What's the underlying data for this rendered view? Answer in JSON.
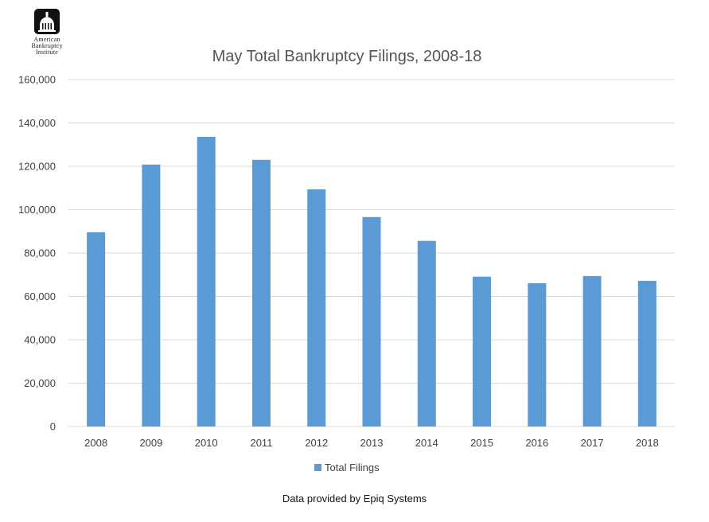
{
  "logo": {
    "lines": [
      "American",
      "Bankruptcy",
      "Institute"
    ],
    "icon": "capitol-dome-icon"
  },
  "footer": {
    "text": "Data provided by Epiq Systems"
  },
  "chart_data": {
    "type": "bar",
    "title": "May Total Bankruptcy Filings, 2008-18",
    "xlabel": "",
    "ylabel": "",
    "categories": [
      "2008",
      "2009",
      "2010",
      "2011",
      "2012",
      "2013",
      "2014",
      "2015",
      "2016",
      "2017",
      "2018"
    ],
    "series": [
      {
        "name": "Total Filings",
        "values": [
          89600,
          120800,
          133600,
          123000,
          109400,
          96600,
          85600,
          69100,
          66100,
          69400,
          67200
        ],
        "color": "#5B9BD5"
      }
    ],
    "ylim": [
      0,
      160000
    ],
    "yticks": [
      0,
      20000,
      40000,
      60000,
      80000,
      100000,
      120000,
      140000,
      160000
    ],
    "ytick_labels": [
      "0",
      "20,000",
      "40,000",
      "60,000",
      "80,000",
      "100,000",
      "120,000",
      "140,000",
      "160,000"
    ],
    "grid": true,
    "gridline_color": "#D9D9D9",
    "legend": "bottom"
  }
}
